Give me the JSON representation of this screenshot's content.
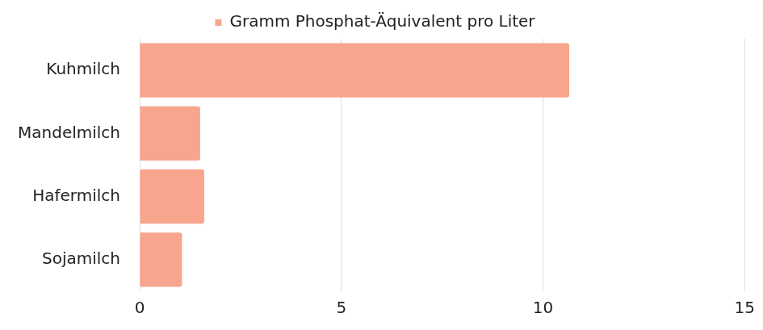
{
  "chart_data": {
    "type": "bar",
    "orientation": "horizontal",
    "categories": [
      "Kuhmilch",
      "Mandelmilch",
      "Hafermilch",
      "Sojamilch"
    ],
    "series": [
      {
        "name": "Gramm Phosphat-Äquivalent pro Liter",
        "color": "#f8a58d",
        "values": [
          10.65,
          1.5,
          1.6,
          1.05
        ]
      }
    ],
    "xlim": [
      0,
      15
    ],
    "xticks": [
      0,
      5,
      10,
      15
    ],
    "grid": true,
    "legend": "top"
  }
}
